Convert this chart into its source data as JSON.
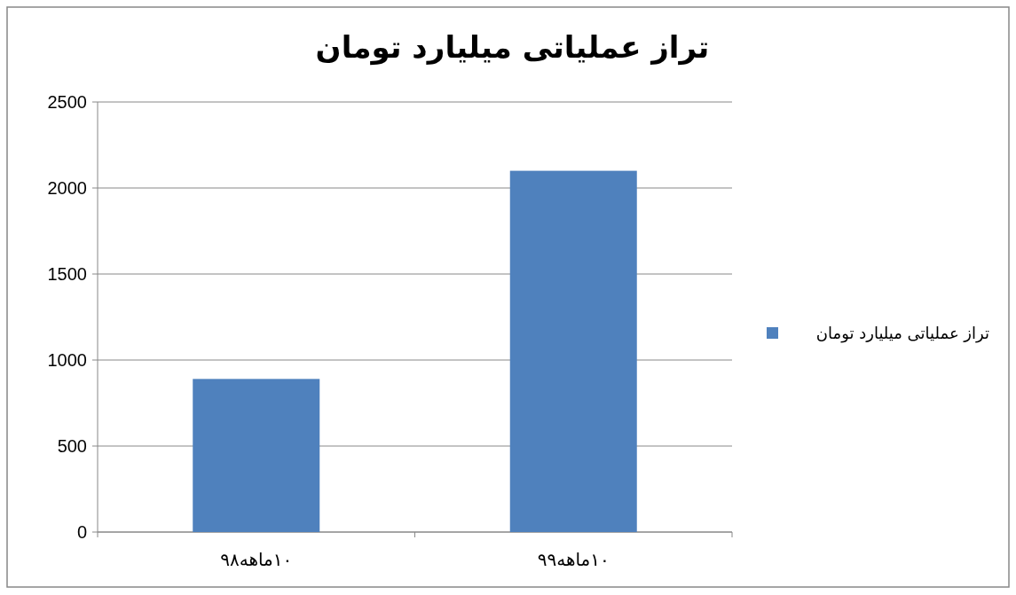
{
  "chart_data": {
    "type": "bar",
    "title": "تراز عملیاتی میلیارد تومان",
    "categories": [
      "۱۰ماهه۹۸",
      "۱۰ماهه۹۹"
    ],
    "series": [
      {
        "name": "تراز عملیاتی میلیارد تومان",
        "color": "#4f81bd",
        "values": [
          890,
          2100
        ]
      }
    ],
    "ylim": [
      0,
      2500
    ],
    "yticks": [
      0,
      500,
      1000,
      1500,
      2000,
      2500
    ],
    "grid": "y",
    "legend": "right"
  }
}
